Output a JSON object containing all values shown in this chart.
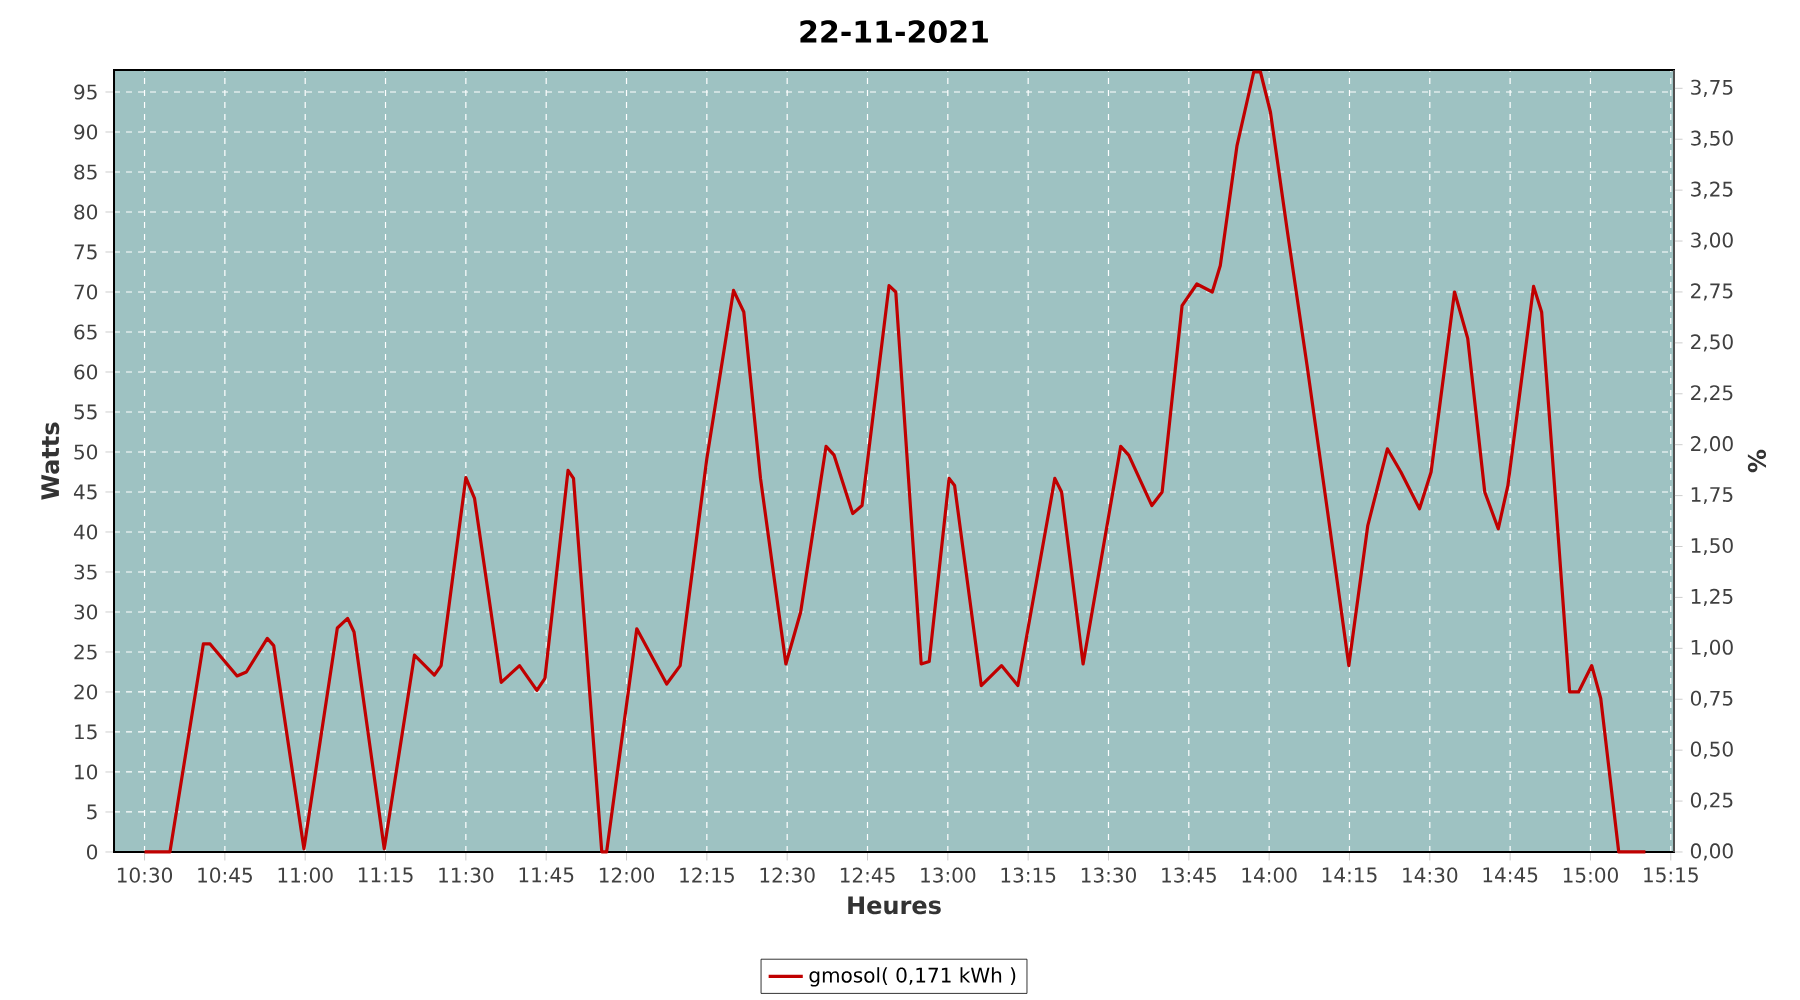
{
  "chart_data": {
    "type": "line",
    "title": "22-11-2021",
    "xlabel": "Heures",
    "ylabel": "Watts",
    "y2label": "%",
    "series": [
      {
        "name": "gmosol( 0,171 kWh )",
        "color": "#c00000",
        "x": [
          10.5,
          10.579,
          10.683,
          10.704,
          10.788,
          10.817,
          10.882,
          10.902,
          10.996,
          11.1,
          11.132,
          11.152,
          11.246,
          11.34,
          11.402,
          11.423,
          11.5,
          11.527,
          11.61,
          11.667,
          11.721,
          11.746,
          11.818,
          11.835,
          11.923,
          11.938,
          12.032,
          12.125,
          12.167,
          12.25,
          12.333,
          12.365,
          12.417,
          12.496,
          12.542,
          12.621,
          12.646,
          12.704,
          12.733,
          12.817,
          12.838,
          12.917,
          12.942,
          13.004,
          13.021,
          13.104,
          13.167,
          13.218,
          13.333,
          13.354,
          13.421,
          13.538,
          13.563,
          13.635,
          13.667,
          13.729,
          13.775,
          13.823,
          13.848,
          13.9,
          13.952,
          13.973,
          14.004,
          14.057,
          14.118,
          14.182,
          14.248,
          14.307,
          14.368,
          14.41,
          14.468,
          14.504,
          14.577,
          14.618,
          14.671,
          14.713,
          14.743,
          14.823,
          14.848,
          14.879,
          14.935,
          14.963,
          15.004,
          15.032,
          15.088,
          15.171
        ],
        "values": [
          0,
          0,
          26,
          26,
          22,
          22.5,
          26.7,
          25.8,
          0.4,
          28,
          29.2,
          27.5,
          0.4,
          24.6,
          22.1,
          23.3,
          46.8,
          44.2,
          21.2,
          23.3,
          20.2,
          21.7,
          47.7,
          46.7,
          0,
          0,
          27.9,
          21,
          23.3,
          49.2,
          70.2,
          67.5,
          46.7,
          23.5,
          30,
          50.7,
          49.6,
          42.3,
          43.3,
          70.8,
          70,
          23.5,
          23.8,
          46.7,
          45.8,
          20.8,
          23.3,
          20.8,
          46.7,
          45,
          23.5,
          50.7,
          49.6,
          43.3,
          45,
          68.3,
          71,
          70,
          73.3,
          88.3,
          97.5,
          97.5,
          92.5,
          77.5,
          60.8,
          42.5,
          23.3,
          40.8,
          50.4,
          47.5,
          42.9,
          47.5,
          70,
          64.2,
          45,
          40.4,
          45.8,
          70.7,
          67.5,
          50.8,
          20,
          20,
          23.3,
          19.2,
          0,
          0
        ]
      }
    ],
    "xlim": [
      10.405,
      15.26
    ],
    "xticks": [
      {
        "value": 10.5,
        "label": "10:30"
      },
      {
        "value": 10.75,
        "label": "10:45"
      },
      {
        "value": 11,
        "label": "11:00"
      },
      {
        "value": 11.25,
        "label": "11:15"
      },
      {
        "value": 11.5,
        "label": "11:30"
      },
      {
        "value": 11.75,
        "label": "11:45"
      },
      {
        "value": 12,
        "label": "12:00"
      },
      {
        "value": 12.25,
        "label": "12:15"
      },
      {
        "value": 12.5,
        "label": "12:30"
      },
      {
        "value": 12.75,
        "label": "12:45"
      },
      {
        "value": 13,
        "label": "13:00"
      },
      {
        "value": 13.25,
        "label": "13:15"
      },
      {
        "value": 13.5,
        "label": "13:30"
      },
      {
        "value": 13.75,
        "label": "13:45"
      },
      {
        "value": 14,
        "label": "14:00"
      },
      {
        "value": 14.25,
        "label": "14:15"
      },
      {
        "value": 14.5,
        "label": "14:30"
      },
      {
        "value": 14.75,
        "label": "14:45"
      },
      {
        "value": 15,
        "label": "15:00"
      },
      {
        "value": 15.25,
        "label": "15:15"
      }
    ],
    "ylim": [
      0,
      97.75
    ],
    "yticks": [
      0,
      5,
      10,
      15,
      20,
      25,
      30,
      35,
      40,
      45,
      50,
      55,
      60,
      65,
      70,
      75,
      80,
      85,
      90,
      95
    ],
    "y2lim": [
      0,
      3.84
    ],
    "y2ticks": [
      {
        "value": 0,
        "label": "0,00"
      },
      {
        "value": 0.25,
        "label": "0,25"
      },
      {
        "value": 0.5,
        "label": "0,50"
      },
      {
        "value": 0.75,
        "label": "0,75"
      },
      {
        "value": 1,
        "label": "1,00"
      },
      {
        "value": 1.25,
        "label": "1,25"
      },
      {
        "value": 1.5,
        "label": "1,50"
      },
      {
        "value": 1.75,
        "label": "1,75"
      },
      {
        "value": 2,
        "label": "2,00"
      },
      {
        "value": 2.25,
        "label": "2,25"
      },
      {
        "value": 2.5,
        "label": "2,50"
      },
      {
        "value": 2.75,
        "label": "2,75"
      },
      {
        "value": 3,
        "label": "3,00"
      },
      {
        "value": 3.25,
        "label": "3,25"
      },
      {
        "value": 3.5,
        "label": "3,50"
      },
      {
        "value": 3.75,
        "label": "3,75"
      }
    ],
    "grid": true,
    "legend": "bottom",
    "marker": "none",
    "line_style": "solid"
  }
}
